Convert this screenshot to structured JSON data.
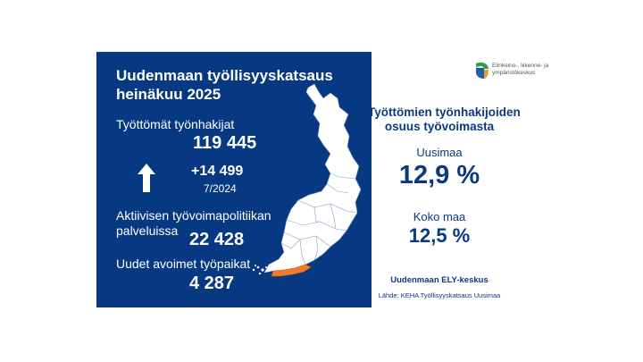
{
  "panel": {
    "title_line1": "Uudenmaan työllisyyskatsaus",
    "title_line2": "heinäkuu 2025",
    "job_seekers_label": "Työttömät työnhakijat",
    "job_seekers_value": "119 445",
    "change_value": "+14 499",
    "change_period": "7/2024",
    "active_label_line1": "Aktiivisen työvoimapolitiikan",
    "active_label_line2": "palveluissa",
    "active_value": "22 428",
    "vacancies_label": "Uudet avoimet työpaikat",
    "vacancies_value": "4 287"
  },
  "right": {
    "heading_line1": "Työttömien työnhakijoiden",
    "heading_line2": "osuus työvoimasta",
    "uusimaa_label": "Uusimaa",
    "uusimaa_value": "12,9 %",
    "koko_label": "Koko maa",
    "koko_value": "12,5 %",
    "org": "Uudenmaan ELY-keskus",
    "source": "Lähde: KEHA Työllisyyskatsaus Uusimaa"
  },
  "logo": {
    "line1": "Elinkeino-, liikenne- ja",
    "line2": "ympäristökeskus"
  },
  "colors": {
    "panel_bg": "#073982",
    "highlight_region": "#f07c2a",
    "map_fill": "#ffffff",
    "text_dark_blue": "#0a3983"
  },
  "icons": {
    "arrow": "up-arrow-icon",
    "logo": "ely-logo-icon"
  }
}
